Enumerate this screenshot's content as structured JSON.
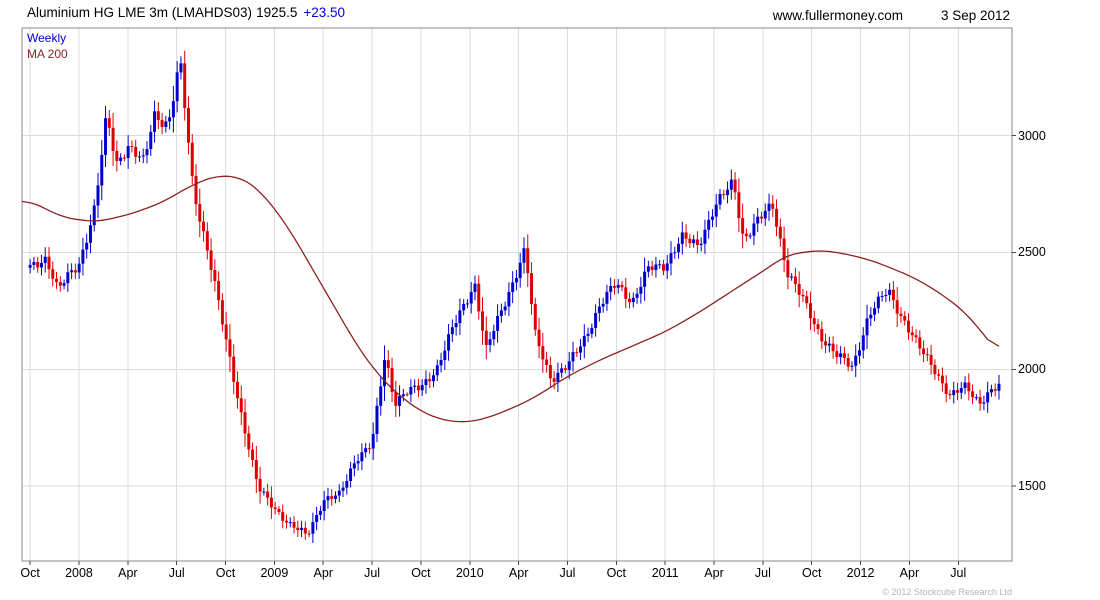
{
  "header": {
    "instrument": "Aluminium HG LME 3m (LMAHDS03)",
    "price": "1925.5",
    "change": "+23.50",
    "site": "www.fullermoney.com",
    "date": "3 Sep 2012"
  },
  "legend": {
    "timeframe": "Weekly",
    "ma": "MA 200"
  },
  "footer": {
    "copyright": "© 2012 Stockcube Research Ltd"
  },
  "chart_data": {
    "type": "candlestick",
    "title": "Aluminium HG LME 3m (LMAHDS03)",
    "last_price": 1925.5,
    "change": 23.5,
    "timeframe": "Weekly",
    "overlay": "MA 200",
    "legend_position": "top-left",
    "grid": true,
    "y_ticks": [
      1500,
      2000,
      2500,
      3000
    ],
    "ylim": [
      1180,
      3460
    ],
    "x_range_months": [
      -0.5,
      60.3
    ],
    "weeks": 258,
    "x_ticks": [
      {
        "label": "Oct",
        "m": 0
      },
      {
        "label": "2008",
        "m": 3
      },
      {
        "label": "Apr",
        "m": 6
      },
      {
        "label": "Jul",
        "m": 9
      },
      {
        "label": "Oct",
        "m": 12
      },
      {
        "label": "2009",
        "m": 15
      },
      {
        "label": "Apr",
        "m": 18
      },
      {
        "label": "Jul",
        "m": 21
      },
      {
        "label": "Oct",
        "m": 24
      },
      {
        "label": "2010",
        "m": 27
      },
      {
        "label": "Apr",
        "m": 30
      },
      {
        "label": "Jul",
        "m": 33
      },
      {
        "label": "Oct",
        "m": 36
      },
      {
        "label": "2011",
        "m": 39
      },
      {
        "label": "Apr",
        "m": 42
      },
      {
        "label": "Jul",
        "m": 45
      },
      {
        "label": "Oct",
        "m": 48
      },
      {
        "label": "2012",
        "m": 51
      },
      {
        "label": "Apr",
        "m": 54
      },
      {
        "label": "Jul",
        "m": 57
      }
    ],
    "sampling_note": "m = months after Oct 2007; anchors are closes read off the chart, weekly bars interpolated between them",
    "price_anchors": {
      "m": [
        0,
        1,
        1.7,
        3,
        4,
        4.7,
        5.3,
        6,
        7,
        7.6,
        8.5,
        9.2,
        10,
        11,
        12,
        13,
        14,
        15,
        16,
        17,
        18,
        19,
        20,
        21,
        21.8,
        22.4,
        23,
        24,
        25,
        26,
        27.3,
        28,
        29,
        30.4,
        31,
        32,
        33,
        34,
        35,
        36,
        37,
        38,
        39,
        40,
        41,
        42,
        43.2,
        43.8,
        44.5,
        45.6,
        46.5,
        47.5,
        48.5,
        49.5,
        50.5,
        51.5,
        52.7,
        53.5,
        54.5,
        55.5,
        56.5,
        57.5,
        58.3,
        59,
        59.5
      ],
      "close": [
        2430,
        2480,
        2340,
        2450,
        2700,
        3080,
        2880,
        2960,
        2880,
        3090,
        3050,
        3320,
        2780,
        2480,
        2130,
        1800,
        1490,
        1410,
        1330,
        1290,
        1440,
        1460,
        1620,
        1680,
        2060,
        1860,
        1900,
        1920,
        2010,
        2180,
        2370,
        2080,
        2260,
        2510,
        2150,
        1960,
        2010,
        2130,
        2270,
        2370,
        2290,
        2430,
        2450,
        2560,
        2530,
        2690,
        2800,
        2560,
        2620,
        2700,
        2420,
        2290,
        2150,
        2060,
        2010,
        2230,
        2340,
        2230,
        2100,
        2010,
        1880,
        1930,
        1860,
        1900,
        1925
      ]
    },
    "ma_anchors": {
      "m": [
        0,
        2,
        4,
        6,
        8,
        10,
        11.5,
        13,
        14,
        15,
        16,
        17,
        18,
        19,
        20,
        21,
        22,
        23,
        24,
        25,
        26,
        27,
        28,
        29.5,
        31,
        33,
        35,
        37,
        39,
        41,
        43,
        45,
        46.5,
        48.5,
        50,
        51.5,
        53,
        54.5,
        56,
        57.5,
        59,
        59.5
      ],
      "value": [
        2720,
        2650,
        2630,
        2660,
        2710,
        2790,
        2830,
        2820,
        2770,
        2690,
        2590,
        2470,
        2350,
        2230,
        2110,
        2010,
        1930,
        1870,
        1820,
        1790,
        1775,
        1775,
        1790,
        1830,
        1880,
        1970,
        2040,
        2100,
        2160,
        2240,
        2330,
        2420,
        2490,
        2510,
        2495,
        2470,
        2430,
        2385,
        2320,
        2240,
        2110,
        2070
      ]
    },
    "colors": {
      "up": "#0000cd",
      "down": "#dd0000",
      "ma": "#8b2222",
      "grid": "#dcdcdc",
      "axis": "#888888",
      "tick": "#444444",
      "timeframe_label": "#0000cc"
    }
  }
}
